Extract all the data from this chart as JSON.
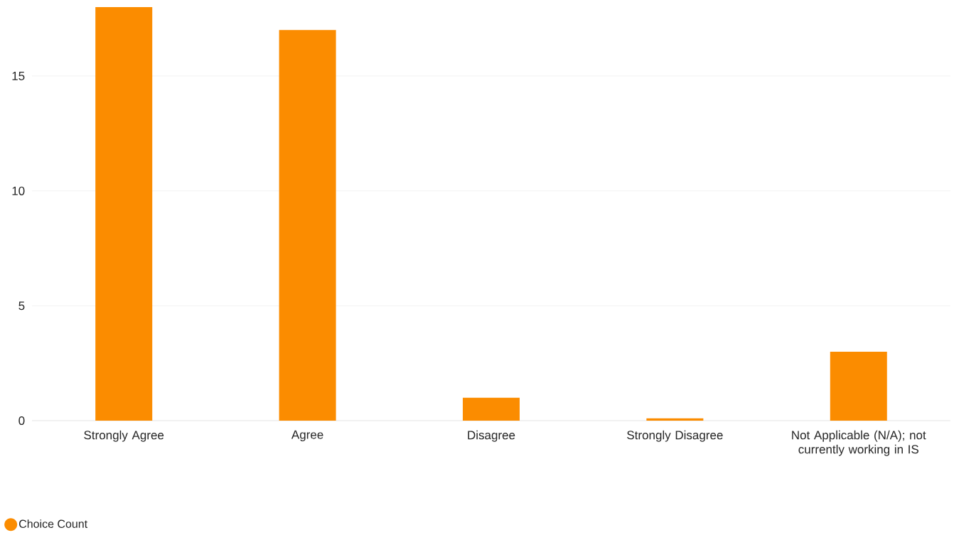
{
  "chart_data": {
    "type": "bar",
    "categories": [
      "Strongly Agree",
      "Agree",
      "Disagree",
      "Strongly Disagree",
      "Not Applicable (N/A); not currently working in IS"
    ],
    "series": [
      {
        "name": "Choice Count",
        "color": "#fb8c00",
        "values": [
          18,
          17,
          1,
          0.1,
          3
        ]
      }
    ],
    "ylim": [
      0,
      18
    ],
    "yticks": [
      0,
      5,
      10,
      15
    ],
    "grid": "y",
    "legend": "bottom left",
    "marker": "circle"
  }
}
